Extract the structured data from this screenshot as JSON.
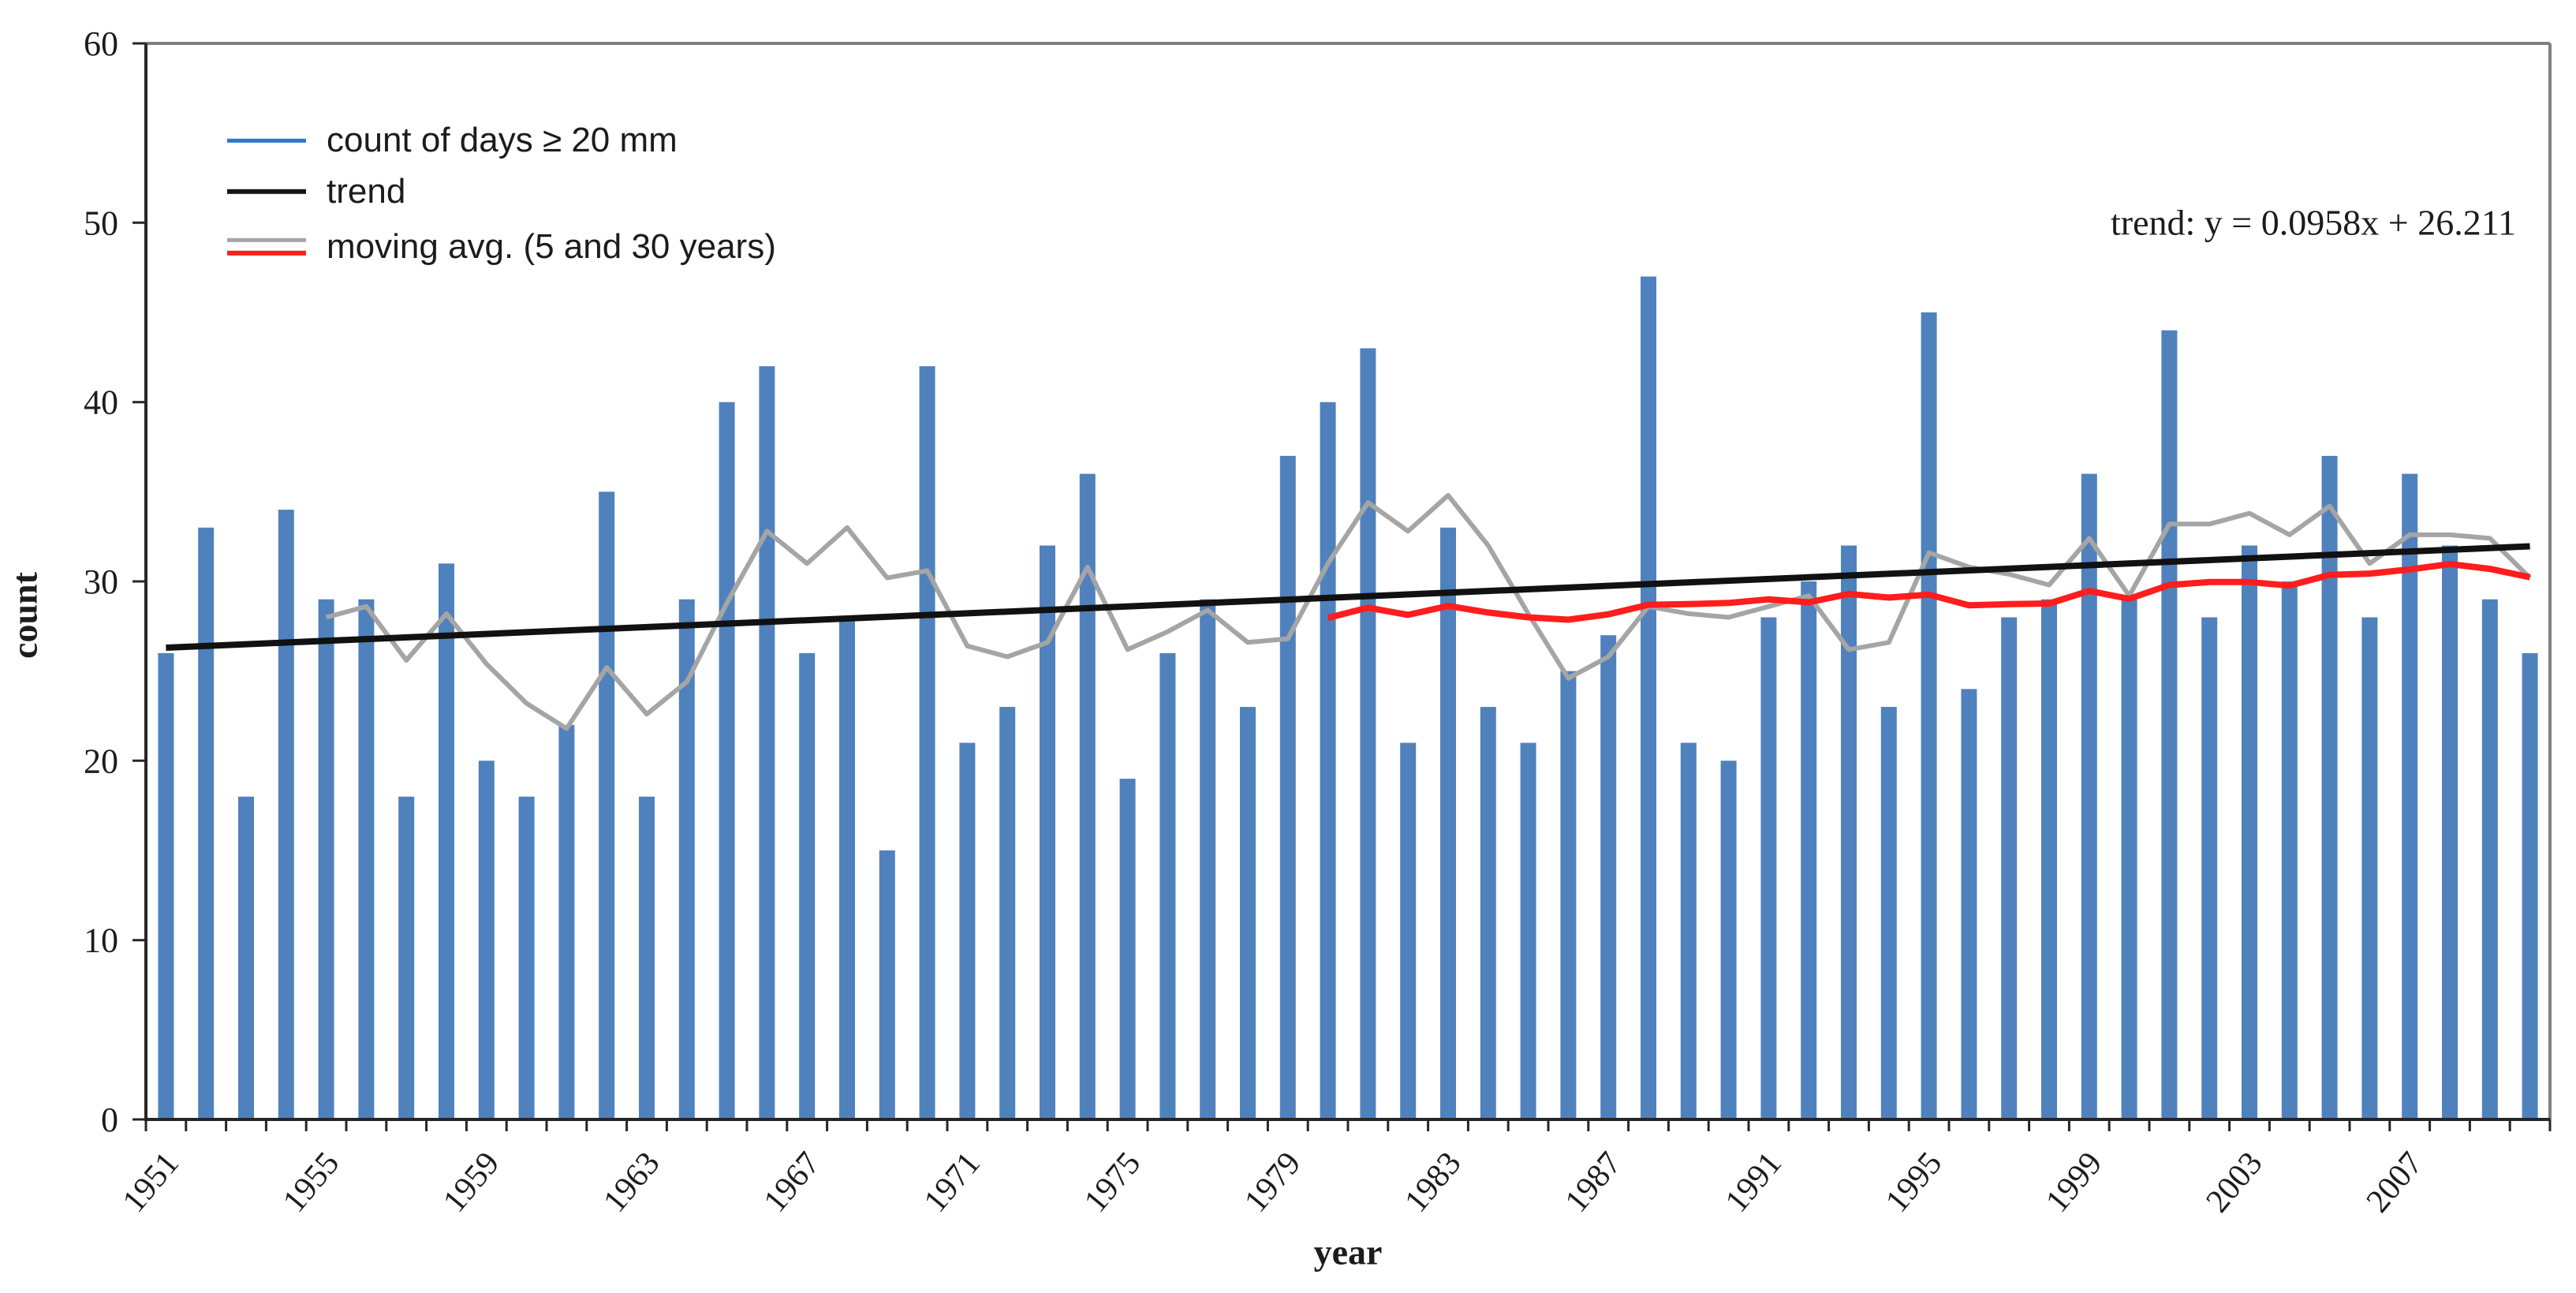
{
  "chart_data": {
    "type": "bar",
    "title": "",
    "xlabel": "year",
    "ylabel": "count",
    "ylim": [
      0,
      60
    ],
    "ytick_step": 10,
    "yticks": [
      0,
      10,
      20,
      30,
      40,
      50,
      60
    ],
    "grid": false,
    "legend_position": "top-left-inside",
    "bar_color": "#4f81bd",
    "axis_color": "#262626",
    "border_color": "#7f7f7f",
    "years": [
      1951,
      1952,
      1953,
      1954,
      1955,
      1956,
      1957,
      1958,
      1959,
      1960,
      1961,
      1962,
      1963,
      1964,
      1965,
      1966,
      1967,
      1968,
      1969,
      1970,
      1971,
      1972,
      1973,
      1974,
      1975,
      1976,
      1977,
      1978,
      1979,
      1980,
      1981,
      1982,
      1983,
      1984,
      1985,
      1986,
      1987,
      1988,
      1989,
      1990,
      1991,
      1992,
      1993,
      1994,
      1995,
      1996,
      1997,
      1998,
      1999,
      2000,
      2001,
      2002,
      2003,
      2004,
      2005,
      2006,
      2007,
      2008,
      2009,
      2010
    ],
    "values": [
      26,
      33,
      18,
      34,
      29,
      29,
      18,
      31,
      20,
      18,
      22,
      35,
      18,
      29,
      40,
      42,
      26,
      28,
      15,
      42,
      21,
      23,
      32,
      36,
      19,
      26,
      29,
      23,
      37,
      40,
      43,
      21,
      33,
      23,
      21,
      25,
      27,
      47,
      21,
      20,
      28,
      30,
      32,
      23,
      45,
      24,
      28,
      29,
      36,
      29,
      44,
      28,
      32,
      30,
      37,
      28,
      36,
      32,
      29,
      26
    ],
    "xtick_years": [
      1951,
      1955,
      1959,
      1963,
      1967,
      1971,
      1975,
      1979,
      1983,
      1987,
      1991,
      1995,
      1999,
      2003,
      2007
    ],
    "legend": [
      {
        "label": "count of days ≥ 20 mm",
        "swatch": "blue-line",
        "color": "#2d74d3"
      },
      {
        "label": "trend",
        "swatch": "black-line",
        "color": "#151515"
      },
      {
        "label": "moving avg. (5 and 30 years)",
        "swatch": "gray-and-red-lines",
        "colors": [
          "#a5a5a5",
          "#ff1d1d"
        ]
      }
    ],
    "trend": {
      "slope": 0.0958,
      "intercept": 26.211,
      "x_index_of_first_year": 1,
      "color": "#111111"
    },
    "moving_averages": [
      {
        "window": 5,
        "mode": "trailing",
        "color": "#a5a5a5"
      },
      {
        "window": 30,
        "mode": "trailing",
        "color": "#ff1d1d"
      }
    ],
    "annotation": "trend: y = 0.0958x + 26.211"
  }
}
